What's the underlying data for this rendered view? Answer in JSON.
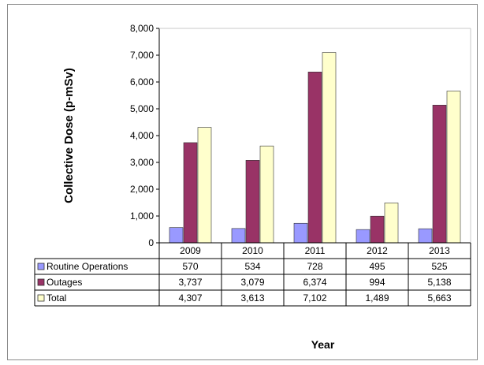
{
  "chart_data": {
    "type": "bar",
    "categories": [
      "2009",
      "2010",
      "2011",
      "2012",
      "2013"
    ],
    "series": [
      {
        "name": "Routine Operations",
        "values": [
          570,
          534,
          728,
          495,
          525
        ],
        "labels": [
          "570",
          "534",
          "728",
          "495",
          "525"
        ],
        "color": "#9999ff"
      },
      {
        "name": "Outages",
        "values": [
          3737,
          3079,
          6374,
          994,
          5138
        ],
        "labels": [
          "3,737",
          "3,079",
          "6,374",
          "994",
          "5,138"
        ],
        "color": "#993366"
      },
      {
        "name": "Total",
        "values": [
          4307,
          3613,
          7102,
          1489,
          5663
        ],
        "labels": [
          "4,307",
          "3,613",
          "7,102",
          "1,489",
          "5,663"
        ],
        "color": "#ffffcc"
      }
    ],
    "xlabel": "Year",
    "ylabel": "Collective Dose (p-mSv)",
    "ylim": [
      0,
      8000
    ],
    "yticks": [
      0,
      1000,
      2000,
      3000,
      4000,
      5000,
      6000,
      7000,
      8000
    ],
    "ytick_labels": [
      "0",
      "1,000",
      "2,000",
      "3,000",
      "4,000",
      "5,000",
      "6,000",
      "7,000",
      "8,000"
    ],
    "grid": false,
    "legend": "data-table"
  }
}
